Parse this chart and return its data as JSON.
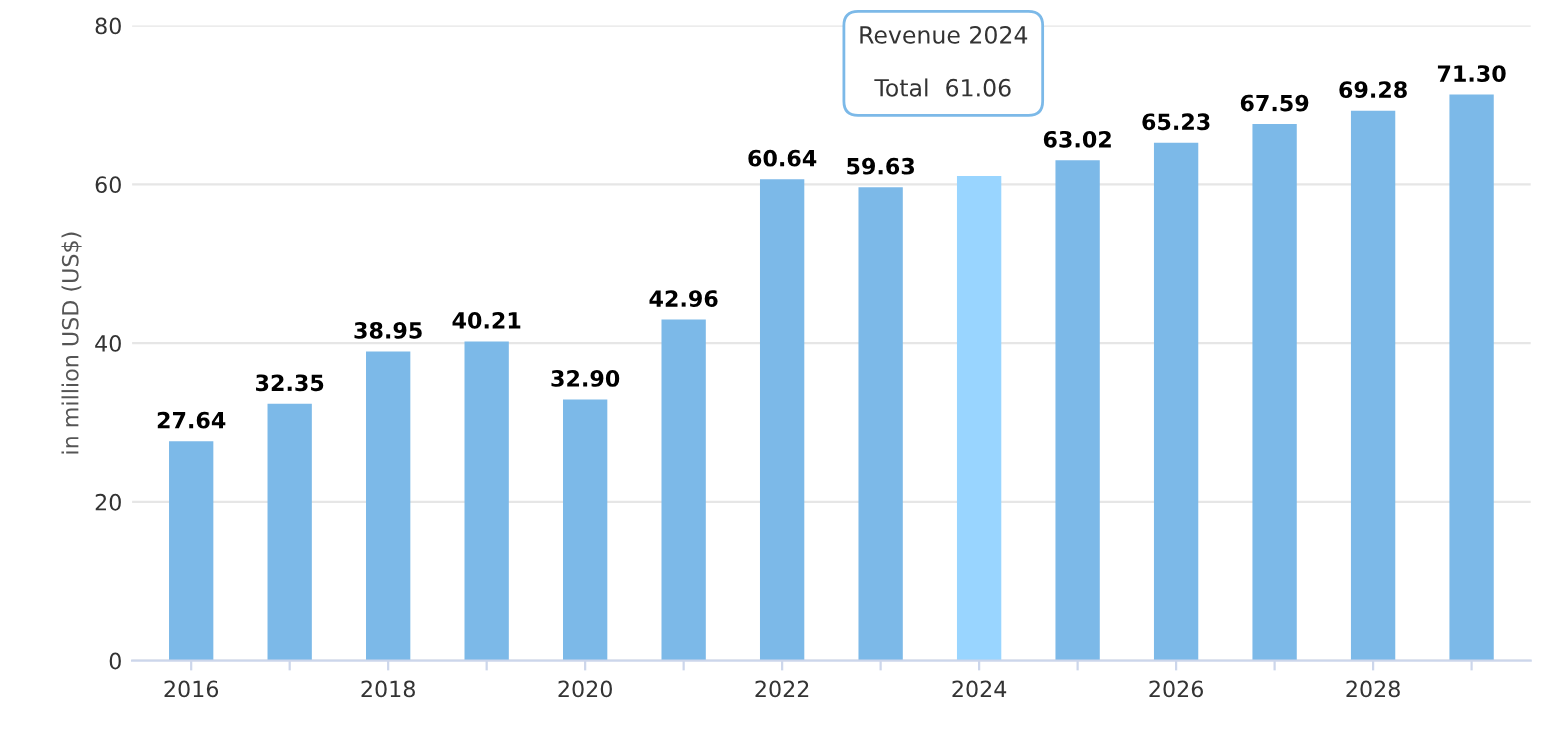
{
  "chart_data": {
    "type": "bar",
    "ylabel": "in million USD (US$)",
    "categories": [
      "2016",
      null,
      "2018",
      null,
      "2020",
      null,
      "2022",
      null,
      "2024",
      null,
      "2026",
      null,
      "2028",
      null
    ],
    "values": [
      27.64,
      32.35,
      38.95,
      40.21,
      32.9,
      42.96,
      60.64,
      59.63,
      61.06,
      63.02,
      65.23,
      67.59,
      69.28,
      71.3
    ],
    "value_labels": [
      "27.64",
      "32.35",
      "38.95",
      "40.21",
      "32.90",
      "42.96",
      "60.64",
      "59.63",
      null,
      "63.02",
      "65.23",
      "67.59",
      "69.28",
      "71.30"
    ],
    "colors": [
      "#7cb9e8",
      "#7cb9e8",
      "#7cb9e8",
      "#7cb9e8",
      "#7cb9e8",
      "#7cb9e8",
      "#7cb9e8",
      "#7cb9e8",
      "#99d5ff",
      "#7cb9e8",
      "#7cb9e8",
      "#7cb9e8",
      "#7cb9e8",
      "#7cb9e8"
    ],
    "ylim": [
      0,
      80
    ],
    "yticks": [
      0,
      20,
      40,
      60,
      80
    ],
    "grid": "y",
    "legend": false,
    "annotations": [
      "Revenue 2024",
      "Total  61.06"
    ]
  }
}
